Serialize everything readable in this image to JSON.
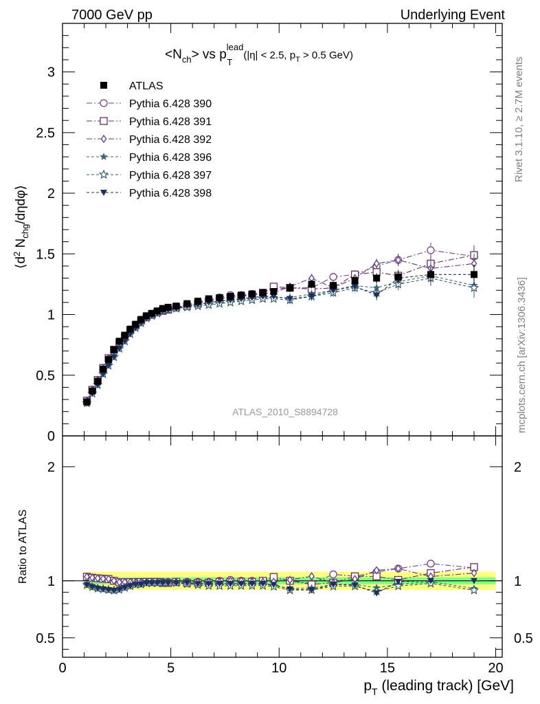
{
  "header": {
    "left": "7000 GeV pp",
    "right": "Underlying Event"
  },
  "side_labels": {
    "rivet": "Rivet 3.1.10, ≥ 2.7M events",
    "mcplots": "mcplots.cern.ch [arXiv:1306.3436]"
  },
  "title": {
    "main": "<N",
    "main_sub": "ch",
    "vs": "> vs p",
    "sup": "lead",
    "sub": "T",
    "cut": "(|η| < 2.5, p",
    "cut_sub": "T",
    "cut_tail": " > 0.5 GeV)"
  },
  "watermark": "ATLAS_2010_S8894728",
  "ylabel_top": "⟨d² N_chg/dηdφ⟩",
  "ylabel_bottom": "Ratio to ATLAS",
  "xlabel": "p_T (leading track) [GeV]",
  "legend": {
    "entries": [
      "ATLAS",
      "Pythia 6.428 390",
      "Pythia 6.428 391",
      "Pythia 6.428 392",
      "Pythia 6.428 396",
      "Pythia 6.428 397",
      "Pythia 6.428 398"
    ]
  },
  "colors": {
    "atlas": "#000000",
    "p390": "#7b3f8c",
    "p391": "#6b2f5f",
    "p392": "#5a3a8a",
    "p396": "#3e6a7a",
    "p397": "#2f5a72",
    "p398": "#1e2f5a",
    "band_inner": "#80ff80",
    "band_outer": "#ffff80"
  },
  "chart_data": {
    "type": "scatter",
    "xlim": [
      0,
      20.3
    ],
    "ylim_top": [
      0,
      3.4
    ],
    "ylim_ratio": [
      0.33,
      2.27
    ],
    "x_ticks": [
      "0",
      "5",
      "10",
      "15",
      "20"
    ],
    "y_ticks_top": [
      "0",
      "0.5",
      "1",
      "1.5",
      "2",
      "2.5",
      "3"
    ],
    "y_ticks_ratio": [
      "0.5",
      "1",
      "2"
    ],
    "x": [
      1.125,
      1.375,
      1.625,
      1.875,
      2.125,
      2.375,
      2.625,
      2.875,
      3.125,
      3.375,
      3.625,
      3.875,
      4.125,
      4.375,
      4.625,
      4.875,
      5.25,
      5.75,
      6.25,
      6.75,
      7.25,
      7.75,
      8.25,
      8.75,
      9.25,
      9.75,
      10.5,
      11.5,
      12.5,
      13.5,
      14.5,
      15.5,
      17.0,
      19.0
    ],
    "series": [
      {
        "name": "ATLAS",
        "values": [
          0.28,
          0.37,
          0.45,
          0.55,
          0.63,
          0.71,
          0.78,
          0.83,
          0.88,
          0.92,
          0.96,
          0.99,
          1.01,
          1.03,
          1.05,
          1.06,
          1.07,
          1.09,
          1.11,
          1.13,
          1.14,
          1.15,
          1.16,
          1.17,
          1.18,
          1.19,
          1.22,
          1.25,
          1.24,
          1.28,
          1.3,
          1.31,
          1.33,
          1.33
        ]
      },
      {
        "name": "Pythia 6.428 390",
        "values": [
          0.29,
          0.38,
          0.46,
          0.56,
          0.64,
          0.71,
          0.77,
          0.82,
          0.87,
          0.91,
          0.95,
          0.98,
          1.0,
          1.02,
          1.04,
          1.05,
          1.06,
          1.08,
          1.1,
          1.12,
          1.14,
          1.16,
          1.16,
          1.17,
          1.18,
          1.21,
          1.22,
          1.22,
          1.31,
          1.33,
          1.4,
          1.45,
          1.53,
          1.48
        ]
      },
      {
        "name": "Pythia 6.428 391",
        "values": [
          0.29,
          0.38,
          0.46,
          0.56,
          0.64,
          0.71,
          0.77,
          0.82,
          0.87,
          0.91,
          0.95,
          0.98,
          1.0,
          1.02,
          1.03,
          1.04,
          1.06,
          1.07,
          1.09,
          1.11,
          1.13,
          1.14,
          1.15,
          1.16,
          1.18,
          1.23,
          1.22,
          1.21,
          1.22,
          1.33,
          1.35,
          1.32,
          1.42,
          1.49
        ]
      },
      {
        "name": "Pythia 6.428 392",
        "values": [
          0.29,
          0.38,
          0.46,
          0.56,
          0.64,
          0.71,
          0.77,
          0.82,
          0.87,
          0.91,
          0.95,
          0.98,
          1.0,
          1.02,
          1.04,
          1.05,
          1.06,
          1.08,
          1.1,
          1.12,
          1.13,
          1.15,
          1.16,
          1.16,
          1.17,
          1.18,
          1.23,
          1.3,
          1.22,
          1.3,
          1.42,
          1.45,
          1.38,
          1.42
        ]
      },
      {
        "name": "Pythia 6.428 396",
        "values": [
          0.27,
          0.35,
          0.42,
          0.51,
          0.58,
          0.65,
          0.72,
          0.78,
          0.84,
          0.89,
          0.93,
          0.97,
          0.99,
          1.01,
          1.03,
          1.04,
          1.05,
          1.07,
          1.08,
          1.1,
          1.11,
          1.12,
          1.13,
          1.14,
          1.15,
          1.14,
          1.14,
          1.17,
          1.2,
          1.24,
          1.22,
          1.27,
          1.32,
          1.24
        ]
      },
      {
        "name": "Pythia 6.428 397",
        "values": [
          0.27,
          0.35,
          0.42,
          0.51,
          0.58,
          0.65,
          0.72,
          0.78,
          0.84,
          0.89,
          0.93,
          0.97,
          0.99,
          1.01,
          1.03,
          1.04,
          1.05,
          1.06,
          1.07,
          1.08,
          1.09,
          1.1,
          1.11,
          1.12,
          1.13,
          1.13,
          1.12,
          1.15,
          1.18,
          1.22,
          1.18,
          1.25,
          1.3,
          1.22
        ]
      },
      {
        "name": "Pythia 6.428 398",
        "values": [
          0.27,
          0.35,
          0.42,
          0.51,
          0.58,
          0.65,
          0.72,
          0.78,
          0.84,
          0.89,
          0.93,
          0.97,
          0.99,
          1.01,
          1.03,
          1.04,
          1.05,
          1.07,
          1.08,
          1.1,
          1.11,
          1.12,
          1.13,
          1.14,
          1.15,
          1.15,
          1.13,
          1.15,
          1.2,
          1.23,
          1.16,
          1.3,
          1.33,
          1.33
        ]
      }
    ],
    "band_inner": [
      0.97,
      1.03
    ],
    "band_outer": [
      0.92,
      1.08
    ]
  }
}
